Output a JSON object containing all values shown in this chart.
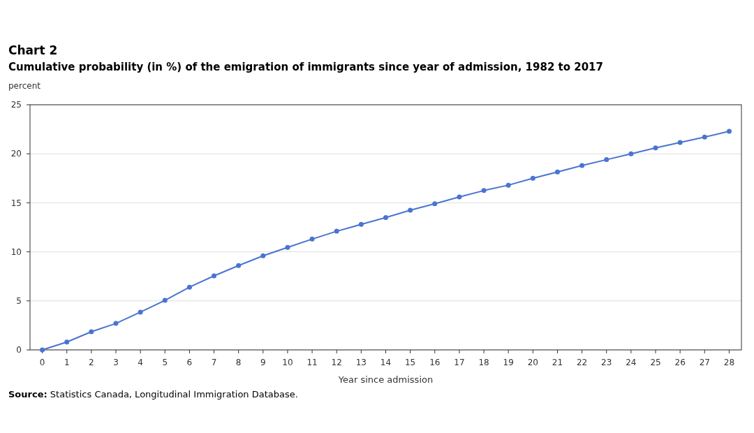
{
  "chart_data": {
    "type": "line",
    "title": "Chart 2",
    "subtitle": "Cumulative probability (in %) of the emigration of immigrants since year of admission, 1982 to 2017",
    "xlabel": "Year since admission",
    "ylabel": "percent",
    "annotations": [
      "Source: Statistics Canada, Longitudinal Immigration Database."
    ],
    "x": [
      0,
      1,
      2,
      3,
      4,
      5,
      6,
      7,
      8,
      9,
      10,
      11,
      12,
      13,
      14,
      15,
      16,
      17,
      18,
      19,
      20,
      21,
      22,
      23,
      24,
      25,
      26,
      27,
      28
    ],
    "series": [
      {
        "color": "#4a74d0",
        "values": [
          0,
          0.8,
          1.85,
          2.7,
          3.85,
          5.05,
          6.4,
          7.55,
          8.6,
          9.6,
          10.45,
          11.3,
          12.1,
          12.8,
          13.5,
          14.25,
          14.9,
          15.6,
          16.25,
          16.8,
          17.5,
          18.15,
          18.8,
          19.4,
          20,
          20.6,
          21.15,
          21.7,
          22.3
        ]
      }
    ],
    "xlim": [
      -0.5,
      28.5
    ],
    "xticks": [
      0,
      1,
      2,
      3,
      4,
      5,
      6,
      7,
      8,
      9,
      10,
      11,
      12,
      13,
      14,
      15,
      16,
      17,
      18,
      19,
      20,
      21,
      22,
      23,
      24,
      25,
      26,
      27,
      28
    ],
    "ylim": [
      0,
      25
    ],
    "yticks": [
      0,
      5,
      10,
      15,
      20,
      25
    ],
    "grid": "y",
    "marker": "circle",
    "line_style": "solid"
  }
}
